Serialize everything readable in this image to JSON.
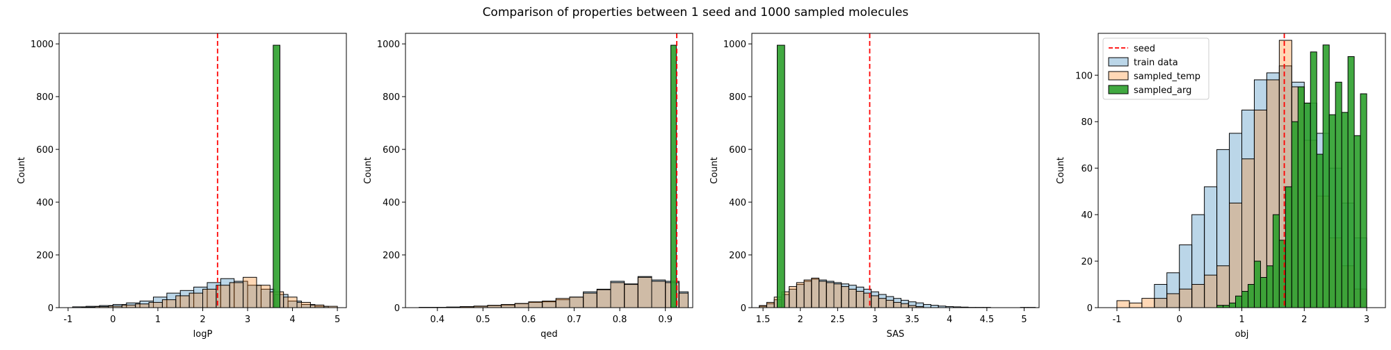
{
  "title": "Comparison of properties between 1 seed and 1000 sampled molecules",
  "colors": {
    "train": "#1f77b4",
    "temp": "#ff7f0e",
    "arg": "#2ca02c",
    "seed": "#ff0000"
  },
  "chart_data": [
    {
      "type": "histogram",
      "xlabel": "logP",
      "ylabel": "Count",
      "xlim": [
        -1.2,
        5.2
      ],
      "ylim": [
        0,
        1040
      ],
      "xticks": [
        -1,
        0,
        1,
        2,
        3,
        4,
        5
      ],
      "yticks": [
        0,
        200,
        400,
        600,
        800,
        1000
      ],
      "seed": 2.33,
      "series": [
        {
          "name": "train data",
          "color_key": "train",
          "bins": [
            -0.9,
            -0.6,
            -0.3,
            0,
            0.3,
            0.6,
            0.9,
            1.2,
            1.5,
            1.8,
            2.1,
            2.4,
            2.7,
            3.0,
            3.3,
            3.6,
            3.9,
            4.2,
            4.5,
            4.8
          ],
          "counts": [
            3,
            5,
            8,
            12,
            18,
            25,
            40,
            55,
            65,
            78,
            95,
            110,
            100,
            85,
            70,
            50,
            25,
            12,
            5
          ]
        },
        {
          "name": "sampled_temp",
          "color_key": "temp",
          "bins": [
            -0.7,
            -0.4,
            -0.1,
            0.2,
            0.5,
            0.8,
            1.1,
            1.4,
            1.7,
            2.0,
            2.3,
            2.6,
            2.9,
            3.2,
            3.5,
            3.8,
            4.1,
            4.4,
            4.7,
            5.0
          ],
          "counts": [
            2,
            4,
            6,
            10,
            14,
            20,
            30,
            45,
            55,
            70,
            85,
            95,
            115,
            85,
            60,
            40,
            20,
            10,
            5
          ]
        },
        {
          "name": "sampled_arg",
          "color_key": "arg",
          "bins": [
            3.57,
            3.72
          ],
          "counts": [
            995
          ]
        }
      ]
    },
    {
      "type": "histogram",
      "xlabel": "qed",
      "ylabel": "Count",
      "xlim": [
        0.33,
        0.96
      ],
      "ylim": [
        0,
        1040
      ],
      "xticks": [
        0.4,
        0.5,
        0.6,
        0.7,
        0.8,
        0.9
      ],
      "yticks": [
        0,
        200,
        400,
        600,
        800,
        1000
      ],
      "seed": 0.925,
      "series": [
        {
          "name": "train data",
          "color_key": "train",
          "bins": [
            0.36,
            0.39,
            0.42,
            0.45,
            0.48,
            0.51,
            0.54,
            0.57,
            0.6,
            0.63,
            0.66,
            0.69,
            0.72,
            0.75,
            0.78,
            0.81,
            0.84,
            0.87,
            0.9,
            0.93,
            0.95
          ],
          "counts": [
            1,
            1,
            2,
            3,
            5,
            8,
            10,
            15,
            20,
            22,
            30,
            40,
            60,
            70,
            100,
            90,
            118,
            105,
            100,
            60
          ]
        },
        {
          "name": "sampled_temp",
          "color_key": "temp",
          "bins": [
            0.36,
            0.39,
            0.42,
            0.45,
            0.48,
            0.51,
            0.54,
            0.57,
            0.6,
            0.63,
            0.66,
            0.69,
            0.72,
            0.75,
            0.78,
            0.81,
            0.84,
            0.87,
            0.9,
            0.93,
            0.95
          ],
          "counts": [
            1,
            1,
            2,
            4,
            6,
            9,
            12,
            16,
            22,
            25,
            35,
            40,
            55,
            68,
            95,
            88,
            115,
            100,
            95,
            55
          ]
        },
        {
          "name": "sampled_arg",
          "color_key": "arg",
          "bins": [
            0.912,
            0.924
          ],
          "counts": [
            995
          ]
        }
      ]
    },
    {
      "type": "histogram",
      "xlabel": "SAS",
      "ylabel": "Count",
      "xlim": [
        1.35,
        5.2
      ],
      "ylim": [
        0,
        1040
      ],
      "xticks": [
        1.5,
        2.0,
        2.5,
        3.0,
        3.5,
        4.0,
        4.5,
        5.0
      ],
      "yticks": [
        0,
        200,
        400,
        600,
        800,
        1000
      ],
      "seed": 2.93,
      "series": [
        {
          "name": "train data",
          "color_key": "train",
          "bins": [
            1.45,
            1.55,
            1.65,
            1.75,
            1.85,
            1.95,
            2.05,
            2.15,
            2.25,
            2.35,
            2.45,
            2.55,
            2.65,
            2.75,
            2.85,
            2.95,
            3.05,
            3.15,
            3.25,
            3.35,
            3.45,
            3.55,
            3.65,
            3.75,
            3.85,
            3.95,
            4.05,
            4.15,
            4.25,
            4.35,
            4.45,
            4.55,
            4.65,
            4.75,
            4.85,
            4.95,
            5.05,
            5.15
          ],
          "counts": [
            5,
            15,
            30,
            50,
            70,
            88,
            100,
            108,
            105,
            100,
            95,
            90,
            85,
            78,
            70,
            60,
            50,
            42,
            35,
            28,
            22,
            18,
            12,
            9,
            6,
            4,
            3,
            2,
            1,
            1,
            1,
            0,
            0,
            0,
            0,
            1,
            1
          ]
        },
        {
          "name": "sampled_temp",
          "color_key": "temp",
          "bins": [
            1.45,
            1.55,
            1.65,
            1.75,
            1.85,
            1.95,
            2.05,
            2.15,
            2.25,
            2.35,
            2.45,
            2.55,
            2.65,
            2.75,
            2.85,
            2.95,
            3.05,
            3.15,
            3.25,
            3.35,
            3.45,
            3.55,
            3.65
          ],
          "counts": [
            8,
            20,
            40,
            60,
            80,
            95,
            105,
            112,
            100,
            95,
            90,
            80,
            70,
            62,
            55,
            45,
            35,
            28,
            20,
            15,
            8,
            4
          ]
        },
        {
          "name": "sampled_arg",
          "color_key": "arg",
          "bins": [
            1.69,
            1.79
          ],
          "counts": [
            995
          ]
        }
      ]
    },
    {
      "type": "histogram",
      "xlabel": "obj",
      "ylabel": "Count",
      "xlim": [
        -1.3,
        3.3
      ],
      "ylim": [
        0,
        118
      ],
      "xticks": [
        -1,
        0,
        1,
        2,
        3
      ],
      "yticks": [
        0,
        20,
        40,
        60,
        80,
        100
      ],
      "seed": 1.68,
      "legend": [
        "seed",
        "train data",
        "sampled_temp",
        "sampled_arg"
      ],
      "legend_position": "upper-left",
      "series": [
        {
          "name": "train data",
          "color_key": "train",
          "bins": [
            -0.4,
            -0.2,
            0,
            0.2,
            0.4,
            0.6,
            0.8,
            1.0,
            1.2,
            1.4,
            1.6,
            1.8,
            2.0,
            2.2,
            2.4,
            2.6,
            2.8,
            3.0
          ],
          "counts": [
            10,
            15,
            27,
            40,
            52,
            68,
            75,
            85,
            98,
            101,
            104,
            97,
            88,
            75,
            60,
            45,
            30
          ]
        },
        {
          "name": "sampled_temp",
          "color_key": "temp",
          "bins": [
            -1.0,
            -0.8,
            -0.6,
            -0.4,
            -0.2,
            0,
            0.2,
            0.4,
            0.6,
            0.8,
            1.0,
            1.2,
            1.4,
            1.6,
            1.8,
            2.0,
            2.2,
            2.4,
            2.6,
            2.8,
            3.0
          ],
          "counts": [
            3,
            2,
            4,
            4,
            6,
            8,
            10,
            14,
            18,
            45,
            64,
            85,
            98,
            115,
            95,
            72,
            48,
            30,
            18,
            8
          ]
        },
        {
          "name": "sampled_arg",
          "color_key": "arg",
          "bins": [
            0.6,
            0.7,
            0.8,
            0.9,
            1.0,
            1.1,
            1.2,
            1.3,
            1.4,
            1.5,
            1.6,
            1.7,
            1.8,
            1.9,
            2.0,
            2.1,
            2.2,
            2.3,
            2.4,
            2.5,
            2.6,
            2.7,
            2.8,
            2.9,
            3.0
          ],
          "counts": [
            1,
            1,
            2,
            5,
            7,
            10,
            20,
            13,
            18,
            40,
            29,
            52,
            80,
            95,
            88,
            110,
            66,
            113,
            83,
            97,
            84,
            108,
            74,
            92
          ]
        }
      ]
    }
  ]
}
